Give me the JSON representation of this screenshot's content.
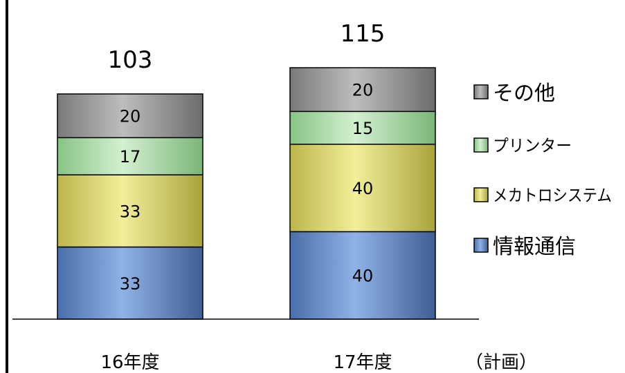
{
  "chart_data": {
    "type": "bar",
    "stacked": true,
    "categories": [
      "16年度",
      "17年度"
    ],
    "category_note": "（計画）",
    "series": [
      {
        "name": "情報通信",
        "values": [
          33,
          40
        ],
        "color": "#6b93cf"
      },
      {
        "name": "メカトロシステム",
        "values": [
          33,
          40
        ],
        "color": "#e6e07a"
      },
      {
        "name": "プリンター",
        "values": [
          17,
          15
        ],
        "color": "#b3e0b0"
      },
      {
        "name": "その他",
        "values": [
          20,
          20
        ],
        "color": "#9a9a9a"
      }
    ],
    "totals": [
      103,
      115
    ],
    "legend_order": [
      "その他",
      "プリンター",
      "メカトロシステム",
      "情報通信"
    ],
    "legend_position": "right",
    "grid": false
  }
}
